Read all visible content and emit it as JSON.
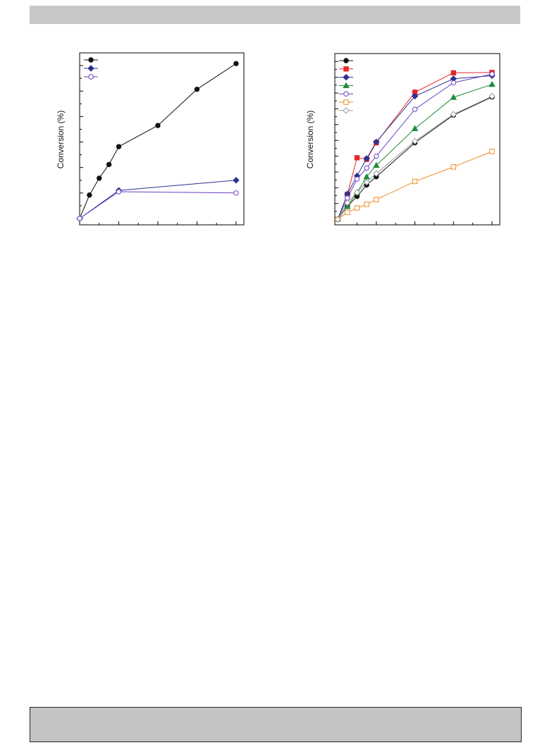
{
  "page": {
    "top_band": "",
    "bottom_band": ""
  },
  "chart_data": [
    {
      "type": "line",
      "ylabel": "Conversion (%)",
      "xlabel": "",
      "xlim": [
        0,
        8.4
      ],
      "ylim": [
        -0.25,
        6.5
      ],
      "x_major_ticks": [
        2,
        4,
        6,
        8
      ],
      "x_minor_ticks": [
        1,
        3,
        5,
        7
      ],
      "y_ticks": [
        0,
        1,
        2,
        3,
        4,
        5,
        6
      ],
      "legend": "top-left",
      "series": [
        {
          "color": "#111111",
          "marker": "circle",
          "filled": true,
          "x": [
            0,
            0.5,
            1,
            1.5,
            2,
            4,
            6,
            8
          ],
          "y": [
            0,
            0.92,
            1.58,
            2.12,
            2.82,
            3.65,
            5.07,
            6.08
          ]
        },
        {
          "color": "#2e3192",
          "marker": "diamond",
          "filled": true,
          "x": [
            0,
            2,
            8
          ],
          "y": [
            0,
            1.1,
            1.5
          ]
        },
        {
          "color": "#6a3fc1",
          "marker": "circle",
          "filled": false,
          "x": [
            0,
            2,
            8
          ],
          "y": [
            0,
            1.05,
            1.0
          ]
        }
      ]
    },
    {
      "type": "line",
      "ylabel": "Conversion (%)",
      "xlabel": "",
      "xlim": [
        -0.15,
        8.4
      ],
      "ylim": [
        -0.35,
        10.5
      ],
      "x_major_ticks": [
        2,
        4,
        6,
        8
      ],
      "x_minor_ticks": [
        1,
        3,
        5,
        7
      ],
      "y_ticks": [
        0,
        1,
        2,
        3,
        4,
        5,
        6,
        7,
        8,
        9,
        10
      ],
      "legend": "top-left",
      "series": [
        {
          "color": "#111111",
          "marker": "circle",
          "filled": true,
          "x": [
            0,
            0.5,
            1,
            1.5,
            2,
            4,
            6,
            8
          ],
          "y": [
            0,
            0.82,
            1.45,
            2.18,
            2.7,
            4.85,
            6.6,
            7.75
          ]
        },
        {
          "color": "#e8262b",
          "marker": "square",
          "filled": true,
          "x": [
            0,
            0.5,
            1,
            1.5,
            2,
            4,
            6,
            8
          ],
          "y": [
            0,
            1.58,
            3.9,
            3.8,
            4.85,
            8.05,
            9.28,
            9.3
          ]
        },
        {
          "color": "#2e3192",
          "marker": "diamond",
          "filled": true,
          "x": [
            0,
            0.5,
            1,
            1.5,
            2,
            4,
            6,
            8
          ],
          "y": [
            0,
            1.6,
            2.75,
            3.85,
            4.9,
            7.8,
            8.9,
            9.1
          ]
        },
        {
          "color": "#1f8a3b",
          "marker": "triangle",
          "filled": true,
          "x": [
            0,
            0.5,
            1,
            1.5,
            2,
            4,
            6,
            8
          ],
          "y": [
            0,
            0.82,
            1.7,
            2.7,
            3.42,
            5.75,
            7.73,
            8.55
          ]
        },
        {
          "color": "#6a3fc1",
          "marker": "circle",
          "filled": false,
          "x": [
            0,
            0.5,
            1,
            1.5,
            2,
            4,
            6,
            8
          ],
          "y": [
            0,
            1.35,
            2.55,
            3.25,
            4.0,
            6.97,
            8.65,
            9.2
          ]
        },
        {
          "color": "#f08a24",
          "marker": "square",
          "filled": false,
          "x": [
            0,
            0.5,
            1,
            1.5,
            2,
            4,
            6,
            8
          ],
          "y": [
            0,
            0.45,
            0.72,
            0.95,
            1.25,
            2.4,
            3.32,
            4.3
          ]
        },
        {
          "color": "#9a9a9a",
          "marker": "diamond",
          "filled": false,
          "x": [
            0,
            0.5,
            1,
            1.5,
            2,
            4,
            6,
            8
          ],
          "y": [
            0,
            1.05,
            1.7,
            2.35,
            2.9,
            4.95,
            6.65,
            7.8
          ]
        }
      ]
    }
  ]
}
